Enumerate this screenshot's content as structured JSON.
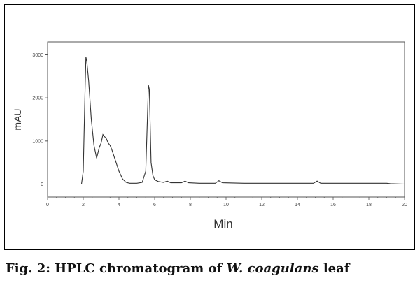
{
  "chart_data": {
    "type": "line",
    "xlabel": "Min",
    "ylabel": "mAU",
    "xlim": [
      0,
      20
    ],
    "ylim": [
      -300,
      3300
    ],
    "x_ticks": [
      "0",
      "2",
      "4",
      "6",
      "8",
      "10",
      "12",
      "14",
      "16",
      "18",
      "20"
    ],
    "y_ticks": [
      "0",
      "1000",
      "2000",
      "3000"
    ],
    "series": [
      {
        "x": [
          0,
          1.9,
          2.0,
          2.1,
          2.15,
          2.2,
          2.3,
          2.45,
          2.6,
          2.75,
          2.9,
          3.0,
          3.1,
          3.2,
          3.3,
          3.4,
          3.5,
          3.6,
          3.8,
          4.0,
          4.2,
          4.4,
          4.6,
          5.0,
          5.3,
          5.5,
          5.6,
          5.65,
          5.7,
          5.75,
          5.8,
          5.9,
          6.0,
          6.2,
          6.5,
          6.7,
          6.9,
          7.5,
          7.7,
          7.9,
          8.5,
          9.4,
          9.6,
          9.8,
          11,
          13,
          14.9,
          15.1,
          15.3,
          17,
          19,
          19.2,
          20
        ],
        "y": [
          0,
          0,
          300,
          2200,
          2950,
          2850,
          2400,
          1500,
          900,
          600,
          850,
          950,
          1150,
          1100,
          1050,
          950,
          900,
          800,
          550,
          300,
          120,
          40,
          20,
          20,
          40,
          300,
          1600,
          2300,
          2200,
          1400,
          500,
          200,
          100,
          60,
          40,
          70,
          30,
          30,
          70,
          30,
          20,
          20,
          80,
          30,
          20,
          20,
          20,
          70,
          20,
          20,
          20,
          10,
          0
        ]
      }
    ]
  },
  "caption": {
    "prefix": "Fig. 2: HPLC chromatogram of ",
    "species": "W. coagulans",
    "suffix": " leaf"
  }
}
